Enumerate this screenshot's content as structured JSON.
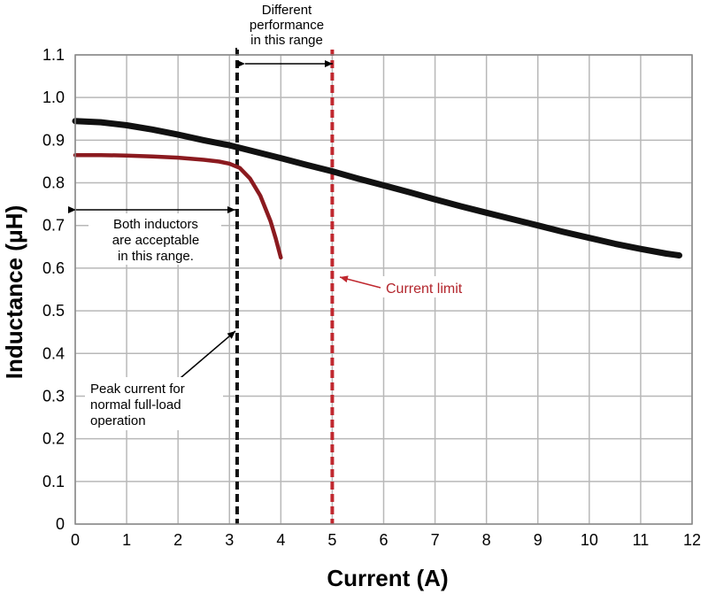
{
  "chart_data": {
    "type": "line",
    "xlabel": "Current (A)",
    "ylabel": "Inductance (μH)",
    "xlim": [
      0,
      12
    ],
    "ylim": [
      0,
      1.1
    ],
    "x_ticks": [
      "0",
      "1",
      "2",
      "3",
      "4",
      "5",
      "6",
      "7",
      "8",
      "9",
      "10",
      "11",
      "12"
    ],
    "y_ticks": [
      "0",
      "0.1",
      "0.2",
      "0.3",
      "0.4",
      "0.5",
      "0.6",
      "0.7",
      "0.8",
      "0.9",
      "1.0",
      "1.1"
    ],
    "grid": true,
    "series": [
      {
        "color": "#111111",
        "x": [
          0,
          0.5,
          1,
          1.5,
          2,
          2.5,
          3,
          3.5,
          4,
          4.5,
          5,
          5.5,
          6,
          6.5,
          7,
          7.5,
          8,
          8.5,
          9,
          9.5,
          10,
          10.5,
          11,
          11.5,
          11.75
        ],
        "y": [
          0.945,
          0.942,
          0.935,
          0.925,
          0.913,
          0.9,
          0.888,
          0.873,
          0.858,
          0.842,
          0.827,
          0.81,
          0.794,
          0.778,
          0.761,
          0.745,
          0.73,
          0.715,
          0.7,
          0.685,
          0.671,
          0.657,
          0.645,
          0.634,
          0.63
        ]
      },
      {
        "color": "#8b1a1f",
        "x": [
          0,
          0.5,
          1,
          1.5,
          2,
          2.5,
          2.8,
          3.0,
          3.2,
          3.4,
          3.6,
          3.8,
          3.9,
          4.0
        ],
        "y": [
          0.865,
          0.865,
          0.864,
          0.862,
          0.859,
          0.854,
          0.85,
          0.845,
          0.835,
          0.81,
          0.77,
          0.71,
          0.67,
          0.625
        ]
      }
    ],
    "reference_lines": [
      {
        "x": 3.15,
        "color": "#111111",
        "style": "dashed"
      },
      {
        "x": 5.0,
        "color": "#c0282f",
        "style": "dashed"
      }
    ],
    "annotations": {
      "top_range": "Different performance in this range",
      "top_range_lines": [
        "Different",
        "performance",
        "in this range"
      ],
      "both_inductors_lines": [
        "Both inductors",
        "are acceptable",
        "in this range."
      ],
      "peak_current_lines": [
        "Peak current for",
        "normal full-load",
        "operation"
      ],
      "current_limit": "Current limit"
    }
  }
}
